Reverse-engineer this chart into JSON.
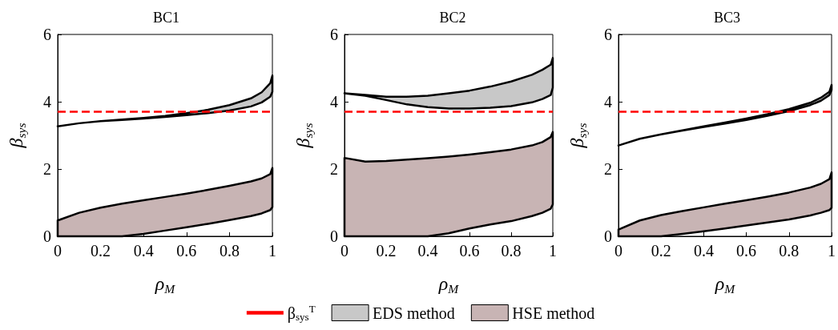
{
  "chart_data": [
    {
      "type": "area",
      "title": "BC1",
      "xlabel": "ρ$_{M}$",
      "ylabel": "β$_{sys}$",
      "x": [
        0,
        0.1,
        0.2,
        0.3,
        0.4,
        0.5,
        0.6,
        0.7,
        0.8,
        0.9,
        0.95,
        0.99,
        1
      ],
      "xlim": [
        0,
        1
      ],
      "ylim": [
        0,
        6
      ],
      "xticks": [
        0,
        0.2,
        0.4,
        0.6,
        0.8,
        1
      ],
      "yticks": [
        0,
        2,
        4,
        6
      ],
      "grid": false,
      "legend": false,
      "series": [
        {
          "color": "#c8c8c8",
          "values": [
            null,
            null,
            null,
            null,
            null,
            null,
            null,
            null,
            null,
            null,
            null,
            null,
            null
          ],
          "upper": [
            3.27,
            3.36,
            3.42,
            3.47,
            3.52,
            3.58,
            3.66,
            3.76,
            3.9,
            4.1,
            4.28,
            4.55,
            4.78
          ],
          "lower": [
            3.27,
            3.36,
            3.42,
            3.46,
            3.5,
            3.55,
            3.6,
            3.66,
            3.74,
            3.86,
            3.98,
            4.15,
            4.3
          ]
        },
        {
          "color": "#c8b4b4",
          "values": [
            null,
            null,
            null,
            null,
            null,
            null,
            null,
            null,
            null,
            null,
            null,
            null,
            null
          ],
          "upper": [
            0.47,
            0.7,
            0.85,
            0.97,
            1.07,
            1.17,
            1.27,
            1.38,
            1.5,
            1.63,
            1.72,
            1.85,
            2.03
          ],
          "lower": [
            0,
            0,
            0,
            0,
            0.07,
            0.17,
            0.27,
            0.37,
            0.48,
            0.6,
            0.68,
            0.78,
            0.87
          ]
        }
      ],
      "ref_lines": [
        {
          "axis": "y",
          "value": 3.7,
          "color": "#ff0000",
          "line_style": "dashed"
        }
      ]
    },
    {
      "type": "area",
      "title": "BC2",
      "xlabel": "ρ$_{M}$",
      "ylabel": "β$_{sys}$",
      "x": [
        0,
        0.1,
        0.2,
        0.3,
        0.4,
        0.5,
        0.6,
        0.7,
        0.8,
        0.9,
        0.95,
        0.99,
        1
      ],
      "xlim": [
        0,
        1
      ],
      "ylim": [
        0,
        6
      ],
      "xticks": [
        0,
        0.2,
        0.4,
        0.6,
        0.8,
        1
      ],
      "yticks": [
        0,
        2,
        4,
        6
      ],
      "grid": false,
      "legend": "bottom",
      "series": [
        {
          "name": "EDS method",
          "color": "#c8c8c8",
          "values": [
            null,
            null,
            null,
            null,
            null,
            null,
            null,
            null,
            null,
            null,
            null,
            null,
            null
          ],
          "upper": [
            4.25,
            4.2,
            4.15,
            4.15,
            4.18,
            4.25,
            4.33,
            4.45,
            4.6,
            4.8,
            4.95,
            5.1,
            5.3
          ],
          "lower": [
            4.25,
            4.18,
            4.05,
            3.92,
            3.84,
            3.8,
            3.8,
            3.82,
            3.87,
            3.98,
            4.08,
            4.2,
            4.42
          ]
        },
        {
          "name": "HSE method",
          "color": "#c8b4b4",
          "values": [
            null,
            null,
            null,
            null,
            null,
            null,
            null,
            null,
            null,
            null,
            null,
            null,
            null
          ],
          "upper": [
            2.33,
            2.22,
            2.24,
            2.28,
            2.32,
            2.37,
            2.43,
            2.5,
            2.58,
            2.7,
            2.8,
            2.95,
            3.1
          ],
          "lower": [
            0,
            0,
            0,
            0,
            0,
            0.09,
            0.23,
            0.35,
            0.45,
            0.6,
            0.7,
            0.82,
            0.95
          ]
        }
      ],
      "ref_lines": [
        {
          "axis": "y",
          "value": 3.7,
          "label": "β$_{sys}$$^{T}$",
          "color": "#ff0000",
          "line_style": "dashed"
        }
      ]
    },
    {
      "type": "area",
      "title": "BC3",
      "xlabel": "ρ$_{M}$",
      "ylabel": "β$_{sys}$",
      "x": [
        0,
        0.1,
        0.2,
        0.3,
        0.4,
        0.5,
        0.6,
        0.7,
        0.8,
        0.9,
        0.95,
        0.99,
        1
      ],
      "xlim": [
        0,
        1
      ],
      "ylim": [
        0,
        6
      ],
      "xticks": [
        0,
        0.2,
        0.4,
        0.6,
        0.8,
        1
      ],
      "yticks": [
        0,
        2,
        4,
        6
      ],
      "grid": false,
      "legend": false,
      "series": [
        {
          "color": "#c8c8c8",
          "values": [
            null,
            null,
            null,
            null,
            null,
            null,
            null,
            null,
            null,
            null,
            null,
            null,
            null
          ],
          "upper": [
            2.7,
            2.9,
            3.03,
            3.15,
            3.27,
            3.38,
            3.5,
            3.63,
            3.78,
            3.97,
            4.12,
            4.3,
            4.5
          ],
          "lower": [
            2.7,
            2.9,
            3.03,
            3.14,
            3.25,
            3.35,
            3.46,
            3.58,
            3.72,
            3.9,
            4.03,
            4.2,
            4.35
          ]
        },
        {
          "color": "#c8b4b4",
          "values": [
            null,
            null,
            null,
            null,
            null,
            null,
            null,
            null,
            null,
            null,
            null,
            null,
            null
          ],
          "upper": [
            0.2,
            0.47,
            0.63,
            0.75,
            0.86,
            0.97,
            1.07,
            1.18,
            1.3,
            1.45,
            1.56,
            1.7,
            1.9
          ],
          "lower": [
            0,
            0,
            0,
            0.07,
            0.15,
            0.23,
            0.32,
            0.41,
            0.5,
            0.62,
            0.7,
            0.78,
            0.85
          ]
        }
      ],
      "ref_lines": [
        {
          "axis": "y",
          "value": 3.7,
          "color": "#ff0000",
          "line_style": "dashed"
        }
      ]
    }
  ]
}
